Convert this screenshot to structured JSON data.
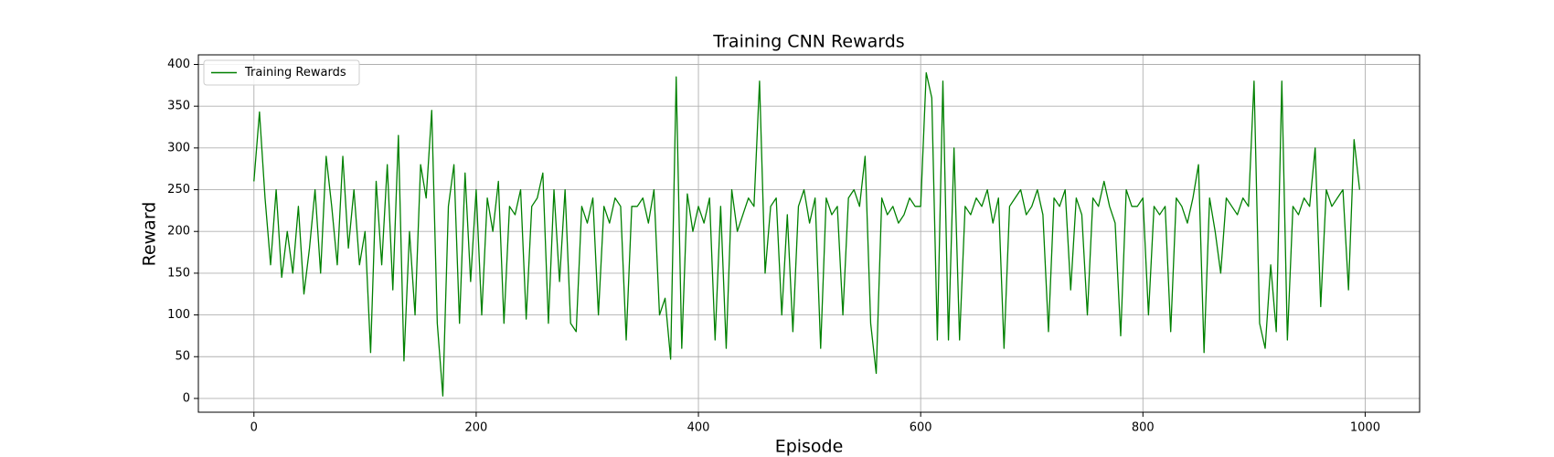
{
  "chart_data": {
    "type": "line",
    "title": "Training CNN Rewards",
    "xlabel": "Episode",
    "ylabel": "Reward",
    "x": [
      0,
      5,
      10,
      15,
      20,
      25,
      30,
      35,
      40,
      45,
      50,
      55,
      60,
      65,
      70,
      75,
      80,
      85,
      90,
      95,
      100,
      105,
      110,
      115,
      120,
      125,
      130,
      135,
      140,
      145,
      150,
      155,
      160,
      165,
      170,
      175,
      180,
      185,
      190,
      195,
      200,
      205,
      210,
      215,
      220,
      225,
      230,
      235,
      240,
      245,
      250,
      255,
      260,
      265,
      270,
      275,
      280,
      285,
      290,
      295,
      300,
      305,
      310,
      315,
      320,
      325,
      330,
      335,
      340,
      345,
      350,
      355,
      360,
      365,
      370,
      375,
      380,
      385,
      390,
      395,
      400,
      405,
      410,
      415,
      420,
      425,
      430,
      435,
      440,
      445,
      450,
      455,
      460,
      465,
      470,
      475,
      480,
      485,
      490,
      495,
      500,
      505,
      510,
      515,
      520,
      525,
      530,
      535,
      540,
      545,
      550,
      555,
      560,
      565,
      570,
      575,
      580,
      585,
      590,
      595,
      600,
      605,
      610,
      615,
      620,
      625,
      630,
      635,
      640,
      645,
      650,
      655,
      660,
      665,
      670,
      675,
      680,
      685,
      690,
      695,
      700,
      705,
      710,
      715,
      720,
      725,
      730,
      735,
      740,
      745,
      750,
      755,
      760,
      765,
      770,
      775,
      780,
      785,
      790,
      795,
      800,
      805,
      810,
      815,
      820,
      825,
      830,
      835,
      840,
      845,
      850,
      855,
      860,
      865,
      870,
      875,
      880,
      885,
      890,
      895,
      900,
      905,
      910,
      915,
      920,
      925,
      930,
      935,
      940,
      945,
      950,
      955,
      960,
      965,
      970,
      975,
      980,
      985,
      990,
      995
    ],
    "series": [
      {
        "name": "Training Rewards",
        "color": "#008000",
        "values": [
          260,
          343,
          240,
          160,
          250,
          145,
          200,
          150,
          230,
          125,
          180,
          250,
          150,
          290,
          230,
          160,
          290,
          180,
          250,
          160,
          200,
          55,
          260,
          160,
          280,
          130,
          315,
          45,
          200,
          100,
          280,
          240,
          345,
          90,
          3,
          230,
          280,
          90,
          270,
          140,
          250,
          100,
          240,
          200,
          260,
          90,
          230,
          220,
          250,
          95,
          230,
          240,
          270,
          90,
          250,
          140,
          250,
          90,
          80,
          230,
          210,
          240,
          100,
          230,
          210,
          240,
          230,
          70,
          230,
          230,
          240,
          210,
          250,
          100,
          120,
          47,
          385,
          60,
          245,
          200,
          230,
          210,
          240,
          70,
          230,
          60,
          250,
          200,
          220,
          240,
          230,
          380,
          150,
          230,
          240,
          100,
          220,
          80,
          230,
          250,
          210,
          240,
          60,
          240,
          220,
          230,
          100,
          240,
          250,
          230,
          290,
          90,
          30,
          240,
          220,
          230,
          210,
          220,
          240,
          230,
          230,
          390,
          360,
          70,
          380,
          70,
          300,
          70,
          230,
          220,
          240,
          230,
          250,
          210,
          240,
          60,
          230,
          240,
          250,
          220,
          230,
          250,
          220,
          80,
          240,
          230,
          250,
          130,
          240,
          220,
          100,
          240,
          230,
          260,
          230,
          210,
          75,
          250,
          230,
          230,
          240,
          100,
          230,
          220,
          230,
          80,
          240,
          230,
          210,
          240,
          280,
          55,
          240,
          200,
          150,
          240,
          230,
          220,
          240,
          230,
          380,
          90,
          60,
          160,
          80,
          380,
          70,
          230,
          220,
          240,
          230,
          300,
          110,
          250,
          230,
          240,
          250,
          130,
          310,
          250
        ]
      }
    ],
    "xlim": [
      -50,
      1049
    ],
    "ylim": [
      -16.5,
      411.5
    ],
    "xticks": [
      0,
      200,
      400,
      600,
      800,
      1000
    ],
    "yticks": [
      0,
      50,
      100,
      150,
      200,
      250,
      300,
      350,
      400
    ],
    "grid": true,
    "legend": "upper left"
  }
}
